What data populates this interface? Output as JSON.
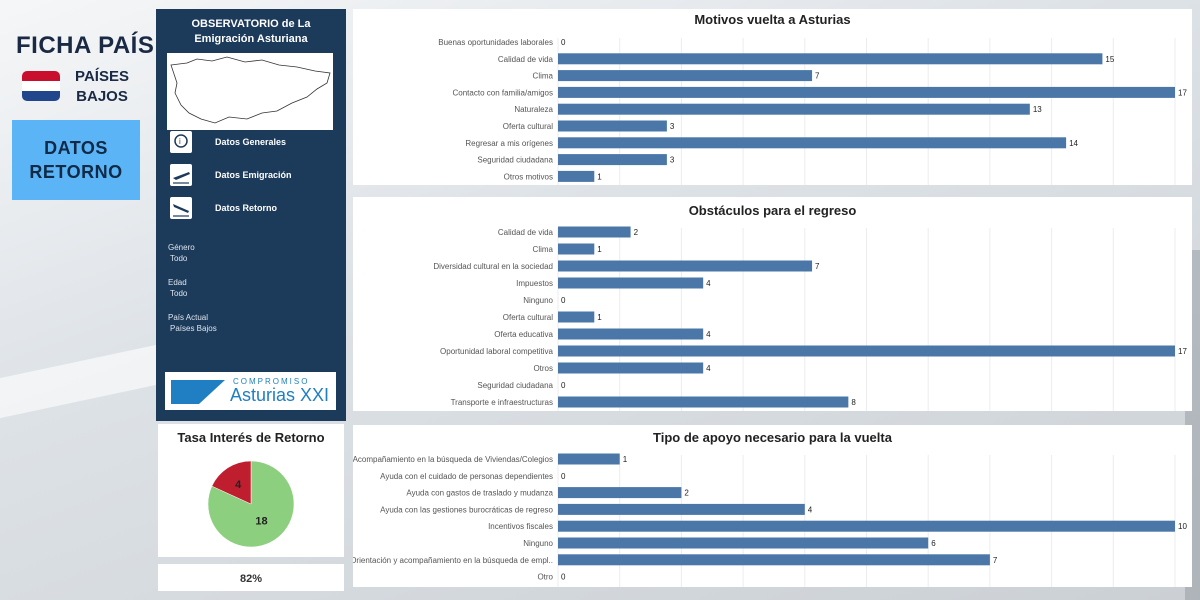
{
  "header": {
    "title": "FICHA PAÍS",
    "country_line1": "PAÍSES",
    "country_line2": "BAJOS",
    "datos_btn_line1": "DATOS",
    "datos_btn_line2": "RETORNO"
  },
  "nav": {
    "title_line1": "OBSERVATORIO de La",
    "title_line2": "Emigración Asturiana",
    "items": [
      {
        "label": "Datos Generales",
        "icon": "info-map-icon"
      },
      {
        "label": "Datos Emigración",
        "icon": "plane-departure-icon"
      },
      {
        "label": "Datos Retorno",
        "icon": "plane-arrival-icon"
      }
    ],
    "filters": [
      {
        "label": "Género",
        "value": "Todo"
      },
      {
        "label": "Edad",
        "value": "Todo"
      },
      {
        "label": "País Actual",
        "value": "Países Bajos"
      }
    ],
    "logo_top": "COMPROMISO",
    "logo_main": "Asturias XXI"
  },
  "pie": {
    "title": "Tasa Interés de Retorno",
    "percent_label": "82%",
    "colors": {
      "yes": "#8ccf7e",
      "no": "#bf1e2e"
    }
  },
  "chart_data": [
    {
      "type": "bar",
      "orientation": "horizontal",
      "title": "Motivos vuelta a Asturias",
      "categories": [
        "Buenas oportunidades laborales",
        "Calidad de vida",
        "Clima",
        "Contacto con familia/amigos",
        "Naturaleza",
        "Oferta cultural",
        "Regresar a mis orígenes",
        "Seguridad ciudadana",
        "Otros motivos"
      ],
      "values": [
        0,
        15,
        7,
        17,
        13,
        3,
        14,
        3,
        1
      ],
      "xlim": [
        0,
        17
      ],
      "color": "#4a77a8"
    },
    {
      "type": "bar",
      "orientation": "horizontal",
      "title": "Obstáculos para el regreso",
      "categories": [
        "Calidad de vida",
        "Clima",
        "Diversidad cultural en la sociedad",
        "Impuestos",
        "Ninguno",
        "Oferta cultural",
        "Oferta educativa",
        "Oportunidad laboral competitiva",
        "Otros",
        "Seguridad ciudadana",
        "Transporte e infraestructuras"
      ],
      "values": [
        2,
        1,
        7,
        4,
        0,
        1,
        4,
        17,
        4,
        0,
        8
      ],
      "xlim": [
        0,
        17
      ],
      "color": "#4a77a8"
    },
    {
      "type": "bar",
      "orientation": "horizontal",
      "title": "Tipo de apoyo necesario para la vuelta",
      "categories": [
        "Acompañamiento en la búsqueda de Viviendas/Colegios",
        "Ayuda con el cuidado de personas dependientes",
        "Ayuda con gastos de traslado y mudanza",
        "Ayuda con las gestiones burocráticas de regreso",
        "Incentivos fiscales",
        "Ninguno",
        "Orientación y acompañamiento en la búsqueda de empl..",
        "Otro"
      ],
      "values": [
        1,
        0,
        2,
        4,
        10,
        6,
        7,
        0
      ],
      "xlim": [
        0,
        10
      ],
      "color": "#4a77a8"
    },
    {
      "type": "pie",
      "title": "Tasa Interés de Retorno",
      "labels": [
        "",
        ""
      ],
      "values": [
        18,
        4
      ]
    }
  ]
}
